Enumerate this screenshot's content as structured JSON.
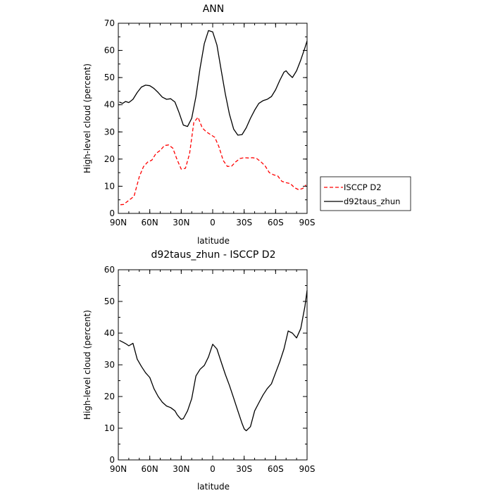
{
  "chart_data": [
    {
      "type": "line",
      "title": "ANN",
      "xlabel": "latitude",
      "ylabel": "High-level cloud (percent)",
      "xlim": [
        90,
        -90
      ],
      "ylim": [
        0,
        70
      ],
      "xticks": [
        90,
        60,
        30,
        0,
        -30,
        -60,
        -90
      ],
      "xtick_labels": [
        "90N",
        "60N",
        "30N",
        "0",
        "30S",
        "60S",
        "90S"
      ],
      "yticks": [
        0,
        10,
        20,
        30,
        40,
        50,
        60,
        70
      ],
      "ytick_labels": [
        "0",
        "10",
        "20",
        "30",
        "40",
        "50",
        "60",
        "70"
      ],
      "legend": "right",
      "series": [
        {
          "name": "ISCCP D2",
          "color": "#ff0000",
          "dash": "dashed",
          "x": [
            88,
            85,
            80,
            75,
            70,
            66,
            62,
            58,
            54,
            50,
            46,
            42,
            38,
            34,
            30,
            26,
            22,
            18,
            14,
            10,
            6,
            2,
            -2,
            -6,
            -10,
            -14,
            -18,
            -22,
            -26,
            -30,
            -34,
            -38,
            -42,
            -46,
            -50,
            -54,
            -58,
            -62,
            -66,
            -70,
            -74,
            -78,
            -82,
            -86,
            -89
          ],
          "y": [
            3.2,
            3.3,
            4.8,
            6.3,
            13.5,
            17.2,
            18.9,
            19.6,
            22.1,
            23.2,
            25.0,
            25.2,
            24.0,
            19.8,
            16.3,
            16.6,
            22.0,
            33.5,
            35.4,
            31.5,
            30.0,
            29.0,
            28.0,
            24.5,
            19.5,
            17.3,
            17.4,
            19.0,
            20.2,
            20.5,
            20.4,
            20.5,
            20.2,
            19.0,
            17.5,
            15.0,
            14.2,
            13.8,
            11.8,
            11.3,
            11.0,
            9.5,
            8.7,
            9.2,
            10.5
          ]
        },
        {
          "name": "d92taus_zhun",
          "color": "#000000",
          "dash": "solid",
          "x": [
            89,
            86,
            83,
            80,
            76,
            72,
            68,
            64,
            60,
            56,
            52,
            48,
            44,
            40,
            36,
            32,
            28,
            24,
            20,
            16,
            12,
            8,
            4,
            0,
            -4,
            -8,
            -12,
            -16,
            -20,
            -24,
            -28,
            -32,
            -36,
            -40,
            -44,
            -48,
            -52,
            -56,
            -60,
            -64,
            -68,
            -70,
            -72,
            -76,
            -80,
            -84,
            -88,
            -90
          ],
          "y": [
            41.0,
            40.5,
            41.2,
            40.8,
            42.0,
            44.5,
            46.5,
            47.2,
            47.0,
            46.0,
            44.5,
            42.8,
            42.0,
            42.2,
            41.0,
            37.0,
            32.5,
            32.0,
            35.0,
            43.0,
            53.5,
            62.5,
            67.3,
            66.8,
            62.0,
            53.0,
            44.0,
            36.5,
            31.0,
            28.8,
            29.0,
            31.5,
            35.0,
            38.0,
            40.5,
            41.5,
            42.0,
            43.0,
            45.5,
            49.0,
            52.0,
            52.5,
            51.5,
            50.0,
            52.5,
            56.5,
            61.0,
            63.5
          ]
        }
      ]
    },
    {
      "type": "line",
      "title": "d92taus_zhun - ISCCP D2",
      "xlabel": "latitude",
      "ylabel": "High-level cloud (percent)",
      "xlim": [
        90,
        -90
      ],
      "ylim": [
        0,
        60
      ],
      "xticks": [
        90,
        60,
        30,
        0,
        -30,
        -60,
        -90
      ],
      "xtick_labels": [
        "90N",
        "60N",
        "30N",
        "0",
        "30S",
        "60S",
        "90S"
      ],
      "yticks": [
        0,
        10,
        20,
        30,
        40,
        50,
        60
      ],
      "ytick_labels": [
        "0",
        "10",
        "20",
        "30",
        "40",
        "50",
        "60"
      ],
      "series": [
        {
          "color": "#000000",
          "dash": "solid",
          "x": [
            89,
            86,
            83,
            80,
            76,
            72,
            68,
            64,
            60,
            56,
            52,
            48,
            44,
            40,
            36,
            34,
            32,
            30,
            28,
            24,
            20,
            16,
            12,
            8,
            4,
            2,
            0,
            -4,
            -8,
            -12,
            -16,
            -20,
            -24,
            -26,
            -28,
            -30,
            -32,
            -36,
            -40,
            -44,
            -48,
            -52,
            -56,
            -60,
            -64,
            -68,
            -72,
            -76,
            -80,
            -84,
            -88,
            -90
          ],
          "y": [
            37.7,
            37.2,
            36.7,
            36.0,
            36.8,
            31.8,
            29.5,
            27.5,
            26.0,
            22.5,
            20.0,
            18.2,
            17.0,
            16.5,
            15.5,
            14.3,
            13.5,
            12.8,
            13.0,
            15.5,
            19.3,
            26.5,
            28.6,
            29.8,
            32.5,
            34.5,
            36.5,
            35.0,
            31.0,
            27.0,
            23.5,
            19.5,
            15.5,
            13.5,
            11.5,
            9.8,
            9.2,
            10.5,
            15.5,
            18.0,
            20.5,
            22.5,
            24.0,
            27.5,
            31.0,
            35.0,
            40.7,
            40.0,
            38.5,
            41.5,
            48.5,
            53.5
          ]
        }
      ]
    }
  ]
}
